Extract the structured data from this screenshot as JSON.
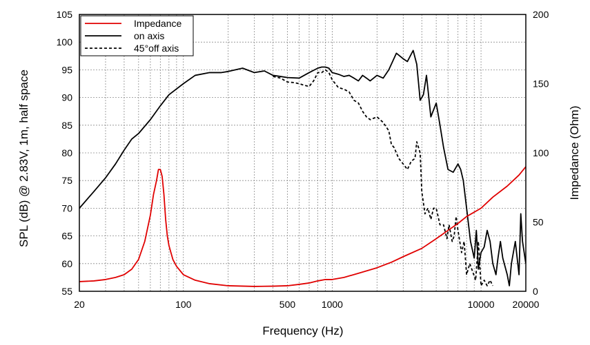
{
  "chart_data": {
    "type": "line",
    "title": "",
    "xlabel": "Frequency (Hz)",
    "ylabel": "SPL (dB) @ 2.83V, 1m, half space",
    "ylabel_right": "Impedance (Ohm)",
    "x_scale": "log",
    "xlim": [
      20,
      20000
    ],
    "ylim": [
      55,
      105
    ],
    "ylim_right": [
      0,
      200
    ],
    "grid": true,
    "legend_position": "top-left",
    "x_ticks": [
      20,
      100,
      500,
      1000,
      10000,
      20000
    ],
    "x_tick_labels": [
      "20",
      "100",
      "500",
      "1000",
      "10000",
      "20000"
    ],
    "y_ticks": [
      55,
      60,
      65,
      70,
      75,
      80,
      85,
      90,
      95,
      100,
      105
    ],
    "y_tick_labels": [
      "55",
      "60",
      "65",
      "70",
      "75",
      "80",
      "85",
      "90",
      "95",
      "100",
      "105"
    ],
    "y_right_ticks": [
      0,
      50,
      100,
      150,
      200
    ],
    "y_right_tick_labels": [
      "0",
      "50",
      "100",
      "150",
      "200"
    ],
    "series": [
      {
        "name": "Impedance",
        "axis": "right",
        "color": "#e00000",
        "style": "solid",
        "x": [
          20,
          25,
          30,
          35,
          40,
          45,
          50,
          55,
          60,
          63,
          66,
          68,
          70,
          72,
          74,
          76,
          78,
          80,
          85,
          90,
          100,
          120,
          150,
          200,
          300,
          400,
          500,
          600,
          700,
          800,
          900,
          1000,
          1200,
          1500,
          2000,
          2500,
          3000,
          4000,
          5000,
          6000,
          7000,
          8000,
          10000,
          12000,
          15000,
          18000,
          20000
        ],
        "values": [
          7,
          7.5,
          8.5,
          10,
          12,
          16,
          23,
          36,
          55,
          70,
          80,
          88,
          88,
          83,
          70,
          52,
          40,
          33,
          23,
          18,
          12,
          8,
          5.5,
          4,
          3.5,
          3.7,
          4,
          5,
          6,
          7.5,
          8.5,
          8.5,
          10,
          13,
          17,
          21,
          25,
          31,
          38,
          44,
          49,
          54,
          60,
          68,
          76,
          84,
          90
        ]
      },
      {
        "name": "on axis",
        "axis": "left",
        "color": "#000000",
        "style": "solid",
        "x": [
          20,
          25,
          30,
          35,
          40,
          45,
          50,
          60,
          70,
          80,
          100,
          120,
          150,
          180,
          200,
          250,
          280,
          300,
          350,
          400,
          450,
          500,
          600,
          700,
          800,
          850,
          900,
          950,
          1000,
          1100,
          1200,
          1300,
          1400,
          1500,
          1600,
          1700,
          1800,
          2000,
          2200,
          2400,
          2700,
          3000,
          3200,
          3500,
          3700,
          3900,
          4100,
          4300,
          4600,
          5000,
          5300,
          5600,
          6000,
          6500,
          7000,
          7300,
          7600,
          8000,
          8500,
          9000,
          9300,
          9600,
          10000,
          10500,
          11000,
          11500,
          12000,
          12600,
          13000,
          13500,
          14000,
          15000,
          15500,
          16000,
          17000,
          18000,
          18500,
          19000,
          20000
        ],
        "values": [
          70,
          73,
          75.5,
          78,
          80.5,
          82.5,
          83.5,
          86,
          88.5,
          90.5,
          92.5,
          94,
          94.5,
          94.5,
          94.7,
          95.3,
          94.8,
          94.5,
          94.8,
          94,
          93.8,
          93.6,
          93.5,
          94.5,
          95.3,
          95.5,
          95.5,
          95.3,
          94.5,
          94.2,
          93.8,
          94,
          93.5,
          93,
          94,
          93.5,
          93,
          94,
          93.5,
          95,
          98,
          97,
          96.5,
          98.5,
          96,
          89.5,
          90.5,
          94,
          86.5,
          89,
          85,
          81,
          77,
          76.5,
          78,
          77,
          75,
          70,
          64,
          61,
          66,
          59,
          62,
          63,
          66,
          64,
          60,
          58,
          61,
          64,
          61,
          58,
          56,
          60,
          64,
          58,
          69,
          64,
          60
        ]
      },
      {
        "name": "45°off axis",
        "axis": "left",
        "color": "#000000",
        "style": "dashed",
        "x": [
          400,
          450,
          500,
          550,
          600,
          650,
          700,
          750,
          800,
          850,
          900,
          950,
          1000,
          1100,
          1200,
          1300,
          1400,
          1500,
          1600,
          1700,
          1800,
          2000,
          2200,
          2400,
          2500,
          2600,
          2800,
          3000,
          3200,
          3400,
          3600,
          3700,
          3900,
          4000,
          4200,
          4400,
          4600,
          4800,
          5000,
          5300,
          5600,
          5900,
          6100,
          6400,
          6600,
          6800,
          7000,
          7400,
          7700,
          8000,
          8400,
          8800,
          9200,
          9600,
          10000,
          10500,
          11000,
          11500,
          12000
        ],
        "values": [
          93.8,
          93.5,
          92.8,
          92.7,
          92.5,
          92.2,
          92,
          93,
          94.5,
          94.5,
          95,
          94.5,
          93.2,
          91.8,
          91.5,
          91,
          89.5,
          89,
          87.5,
          86.5,
          86,
          86.5,
          85.5,
          84,
          81.5,
          81,
          79,
          78,
          77,
          78.5,
          79,
          82,
          80,
          73,
          69,
          70,
          68,
          70,
          70,
          67,
          67,
          64.5,
          67,
          64,
          65,
          68.5,
          66,
          62,
          64,
          58,
          60,
          58.5,
          57,
          64,
          56,
          57,
          56,
          57,
          56
        ]
      }
    ]
  }
}
